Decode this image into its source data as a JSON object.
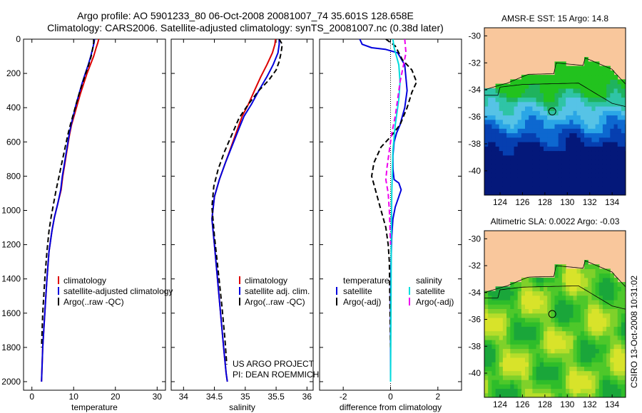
{
  "header": {
    "line1": "Argo profile: AO 5901233_80 06-Oct-2008 20081007_74 35.601S 128.658E",
    "line2": "Climatology: CARS2006. Satellite-adjusted climatology: synTS_20081007.nc (0.38d later)"
  },
  "credit": {
    "line1": "US ARGO PROJECT",
    "line2": "PI: DEAN ROEMMICH"
  },
  "side_stamp": "CSIRO 13-Oct-2008 10:31:02",
  "colors": {
    "climatology": "#dd0000",
    "satellite": "#0000dd",
    "argo": "#000000",
    "salinity_satellite": "#00dddd",
    "salinity_argo": "#ee00ee",
    "land": "#f9c79c"
  },
  "chart_data": [
    {
      "type": "line",
      "panel": "temperature",
      "xlabel": "temperature",
      "ylabel": "",
      "xlim": [
        -2,
        32
      ],
      "ylim": [
        2050,
        0
      ],
      "xticks": [
        0,
        10,
        20,
        30
      ],
      "yticks": [
        0,
        200,
        400,
        600,
        800,
        1000,
        1200,
        1400,
        1600,
        1800,
        2000
      ],
      "legend": [
        "climatology",
        "satellite-adjusted climatology",
        "Argo(..raw -QC)"
      ],
      "series": [
        {
          "name": "climatology",
          "color": "#dd0000",
          "dash": "",
          "x": [
            16.0,
            15.8,
            15.4,
            14.8,
            14.0,
            13.2,
            12.4,
            11.6,
            10.9,
            10.2,
            9.5,
            9.0,
            8.6,
            8.2,
            7.8,
            7.4,
            7.0,
            6.2,
            5.4,
            4.8,
            4.1,
            3.6,
            3.1,
            2.6,
            2.3
          ],
          "y": [
            0,
            20,
            50,
            100,
            150,
            200,
            260,
            320,
            380,
            440,
            500,
            560,
            620,
            680,
            740,
            800,
            880,
            960,
            1040,
            1120,
            1240,
            1400,
            1600,
            1800,
            2000
          ]
        },
        {
          "name": "satellite-adjusted climatology",
          "color": "#0000dd",
          "dash": "",
          "x": [
            15.0,
            14.9,
            14.6,
            14.1,
            13.5,
            12.8,
            12.0,
            11.3,
            10.6,
            10.0,
            9.4,
            8.9,
            8.5,
            8.1,
            7.7,
            7.3,
            6.9,
            6.2,
            5.4,
            4.8,
            4.1,
            3.6,
            3.1,
            2.6,
            2.3
          ],
          "y": [
            0,
            20,
            50,
            100,
            150,
            200,
            260,
            320,
            380,
            440,
            500,
            560,
            620,
            680,
            740,
            800,
            880,
            960,
            1040,
            1120,
            1240,
            1400,
            1600,
            1800,
            2000
          ]
        },
        {
          "name": "Argo(..raw -QC)",
          "color": "#000000",
          "dash": "7,4",
          "x": [
            14.8,
            14.8,
            14.6,
            14.2,
            13.6,
            12.9,
            12.1,
            11.3,
            10.6,
            9.9,
            9.2,
            8.6,
            7.9,
            7.2,
            6.5,
            5.8,
            5.2,
            4.6,
            4.1,
            3.6,
            3.1,
            2.6,
            2.3
          ],
          "y": [
            0,
            20,
            50,
            100,
            150,
            200,
            260,
            320,
            380,
            440,
            500,
            560,
            640,
            720,
            800,
            880,
            960,
            1040,
            1120,
            1240,
            1400,
            1600,
            1800
          ]
        }
      ]
    },
    {
      "type": "line",
      "panel": "salinity",
      "xlabel": "salinity",
      "ylabel": "",
      "xlim": [
        33.8,
        36.1
      ],
      "ylim": [
        2050,
        0
      ],
      "xticks": [
        34,
        34.5,
        35,
        35.5,
        36
      ],
      "xtick_labels": [
        "34",
        "34.5",
        "35",
        "35.5",
        "36"
      ],
      "legend": [
        "climatology",
        "satellite adj. clim.",
        "Argo(..raw -QC)"
      ],
      "series": [
        {
          "name": "climatology",
          "color": "#dd0000",
          "dash": "",
          "x": [
            35.49,
            35.48,
            35.44,
            35.35,
            35.25,
            35.15,
            35.05,
            34.95,
            34.88,
            34.78,
            34.68,
            34.58,
            34.5,
            34.46,
            34.5,
            34.55,
            34.6,
            34.65,
            34.69,
            34.71
          ],
          "y": [
            0,
            30,
            80,
            150,
            220,
            300,
            380,
            450,
            520,
            620,
            720,
            820,
            920,
            1050,
            1200,
            1400,
            1600,
            1800,
            1950,
            2000
          ]
        },
        {
          "name": "satellite adj. clim.",
          "color": "#0000dd",
          "dash": "",
          "x": [
            35.55,
            35.55,
            35.53,
            35.45,
            35.35,
            35.22,
            35.1,
            34.98,
            34.9,
            34.79,
            34.68,
            34.58,
            34.5,
            34.46,
            34.5,
            34.55,
            34.6,
            34.65,
            34.69,
            34.71
          ],
          "y": [
            0,
            30,
            80,
            150,
            220,
            300,
            380,
            450,
            520,
            620,
            720,
            820,
            920,
            1050,
            1200,
            1400,
            1600,
            1800,
            1950,
            2000
          ]
        },
        {
          "name": "Argo(..raw -QC)",
          "color": "#000000",
          "dash": "7,4",
          "x": [
            35.55,
            35.6,
            35.58,
            35.55,
            35.5,
            35.38,
            35.22,
            35.05,
            34.9,
            34.78,
            34.66,
            34.56,
            34.49,
            34.46,
            34.5,
            34.56,
            34.62,
            34.67,
            34.7
          ],
          "y": [
            0,
            30,
            80,
            130,
            180,
            240,
            300,
            380,
            460,
            560,
            660,
            760,
            860,
            980,
            1150,
            1350,
            1550,
            1750,
            1900
          ]
        }
      ]
    },
    {
      "type": "line",
      "panel": "difference",
      "xlabel": "difference from climatology",
      "ylabel": "",
      "xlim": [
        -3,
        3
      ],
      "ylim": [
        2050,
        0
      ],
      "xticks": [
        -2,
        0,
        2
      ],
      "legend_headers": [
        "temperature",
        "salinity"
      ],
      "legend": [
        "satellite",
        "Argo(-adj)",
        "satellite",
        "Argo(-adj)"
      ],
      "series": [
        {
          "name": "satellite",
          "group": "temperature",
          "color": "#0000dd",
          "dash": "",
          "x": [
            -1.3,
            -1.2,
            -0.8,
            -0.2,
            0.3,
            0.6,
            0.7,
            0.6,
            0.4,
            0.25,
            0.15,
            0.1,
            0.1,
            0.15,
            0.35,
            0.45,
            0.35,
            0.2,
            0.1,
            0.05,
            0.02,
            0.0,
            0.0,
            0.0
          ],
          "y": [
            0,
            30,
            50,
            60,
            80,
            150,
            300,
            400,
            500,
            550,
            600,
            680,
            760,
            820,
            840,
            880,
            920,
            980,
            1050,
            1150,
            1300,
            1500,
            1700,
            2000
          ]
        },
        {
          "name": "Argo(-adj)",
          "group": "temperature",
          "color": "#000000",
          "dash": "7,4",
          "x": [
            -0.2,
            0.2,
            0.5,
            0.9,
            1.1,
            0.9,
            0.7,
            0.4,
            0.0,
            -0.4,
            -0.7,
            -0.8,
            -0.6,
            -0.4,
            -0.2,
            -0.1,
            -0.05,
            0.0
          ],
          "y": [
            0,
            40,
            120,
            180,
            250,
            310,
            400,
            500,
            570,
            630,
            720,
            800,
            900,
            1000,
            1100,
            1200,
            1300,
            1800
          ]
        },
        {
          "name": "satellite",
          "group": "salinity",
          "color": "#00dddd",
          "dash": "",
          "x": [
            0.1,
            0.15,
            0.25,
            0.35,
            0.4,
            0.35,
            0.2,
            0.1,
            0.05,
            0.03,
            0.02,
            0.0
          ],
          "y": [
            0,
            50,
            100,
            150,
            250,
            350,
            500,
            650,
            900,
            1200,
            1500,
            2000
          ]
        },
        {
          "name": "Argo(-adj)",
          "group": "salinity",
          "color": "#ee00ee",
          "dash": "7,4",
          "x": [
            0.6,
            0.65,
            0.55,
            0.4,
            0.3,
            0.2,
            0.05,
            -0.05,
            -0.15,
            -0.2,
            -0.1,
            -0.05,
            0.0
          ],
          "y": [
            0,
            80,
            150,
            250,
            350,
            450,
            550,
            650,
            750,
            820,
            900,
            1000,
            1200
          ]
        }
      ]
    },
    {
      "type": "heatmap",
      "panel": "sst_map",
      "title": "AMSR-E SST: 15 Argo: 14.8",
      "xlim": [
        122.6,
        135.2
      ],
      "ylim": [
        -41.8,
        -29.4
      ],
      "xticks": [
        124,
        126,
        128,
        130,
        132,
        134
      ],
      "yticks": [
        -30,
        -32,
        -34,
        -36,
        -38,
        -40
      ],
      "float_position": {
        "lon": 128.658,
        "lat": -35.601
      }
    },
    {
      "type": "heatmap",
      "panel": "sla_map",
      "title": "Altimetric SLA: 0.0022 Argo: -0.03",
      "xlim": [
        122.6,
        135.2
      ],
      "ylim": [
        -41.8,
        -29.4
      ],
      "xticks": [
        124,
        126,
        128,
        130,
        132,
        134
      ],
      "yticks": [
        -30,
        -32,
        -34,
        -36,
        -38,
        -40
      ],
      "float_position": {
        "lon": 128.658,
        "lat": -35.601
      }
    }
  ]
}
